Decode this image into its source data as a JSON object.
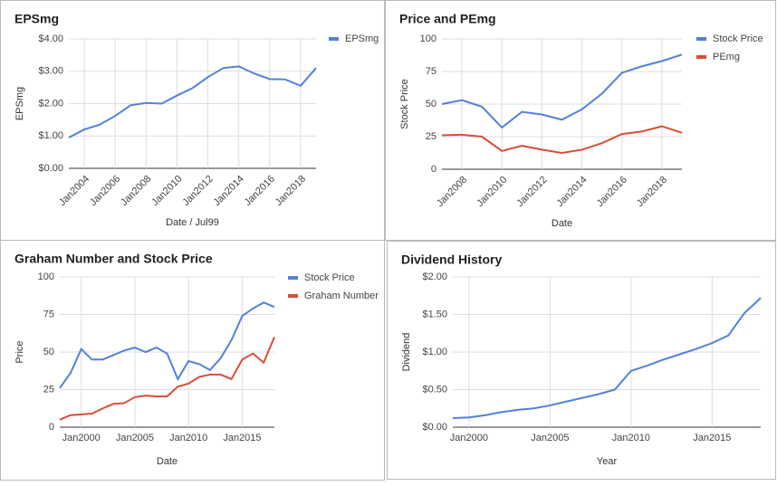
{
  "chart_data": [
    {
      "type": "line",
      "title": "EPSmg",
      "xlabel": "Date / Jul99",
      "ylabel": "EPSmg",
      "x": [
        2003,
        2004,
        2005,
        2006,
        2007,
        2008,
        2009,
        2010,
        2011,
        2012,
        2013,
        2014,
        2015,
        2016,
        2017,
        2018,
        2019
      ],
      "series": [
        {
          "name": "EPSmg",
          "color": "#5181da",
          "values": [
            0.95,
            1.2,
            1.35,
            1.62,
            1.95,
            2.02,
            2.0,
            2.25,
            2.48,
            2.82,
            3.1,
            3.15,
            2.93,
            2.76,
            2.75,
            2.55,
            3.1
          ]
        }
      ],
      "xlim": [
        2003,
        2019
      ],
      "xticks": [
        {
          "value": 2004,
          "label": "Jan2004"
        },
        {
          "value": 2006,
          "label": "Jan2006"
        },
        {
          "value": 2008,
          "label": "Jan2008"
        },
        {
          "value": 2010,
          "label": "Jan2010"
        },
        {
          "value": 2012,
          "label": "Jan2012"
        },
        {
          "value": 2014,
          "label": "Jan2014"
        },
        {
          "value": 2016,
          "label": "Jan2016"
        },
        {
          "value": 2018,
          "label": "Jan2018"
        }
      ],
      "ylim": [
        0,
        4
      ],
      "yticks": [
        {
          "value": 0,
          "label": "$0.00"
        },
        {
          "value": 1,
          "label": "$1.00"
        },
        {
          "value": 2,
          "label": "$2.00"
        },
        {
          "value": 3,
          "label": "$3.00"
        },
        {
          "value": 4,
          "label": "$4.00"
        }
      ],
      "grid": true,
      "legend": "right"
    },
    {
      "type": "line",
      "title": "Price and PEmg",
      "xlabel": "Date",
      "ylabel": "Stock Price",
      "x": [
        2007,
        2008,
        2009,
        2010,
        2011,
        2012,
        2013,
        2014,
        2015,
        2016,
        2017,
        2018,
        2019
      ],
      "series": [
        {
          "name": "Stock Price",
          "color": "#5181da",
          "values": [
            50,
            53,
            48,
            32,
            44,
            42,
            38,
            46,
            58,
            74,
            79,
            83,
            88
          ]
        },
        {
          "name": "PEmg",
          "color": "#dc4c36",
          "values": [
            26,
            26.5,
            25,
            14,
            18,
            15,
            12.5,
            15,
            20,
            27,
            29,
            33,
            28
          ]
        }
      ],
      "xlim": [
        2007,
        2019
      ],
      "xticks": [
        {
          "value": 2008,
          "label": "Jan2008"
        },
        {
          "value": 2010,
          "label": "Jan2010"
        },
        {
          "value": 2012,
          "label": "Jan2012"
        },
        {
          "value": 2014,
          "label": "Jan2014"
        },
        {
          "value": 2016,
          "label": "Jan2016"
        },
        {
          "value": 2018,
          "label": "Jan2018"
        }
      ],
      "ylim": [
        0,
        100
      ],
      "yticks": [
        0,
        25,
        50,
        75,
        100
      ],
      "grid": true,
      "legend": "right"
    },
    {
      "type": "line",
      "title": "Graham Number and Stock Price",
      "xlabel": "Date",
      "ylabel": "Price",
      "x": [
        1998,
        1999,
        2000,
        2001,
        2002,
        2003,
        2004,
        2005,
        2006,
        2007,
        2008,
        2009,
        2010,
        2011,
        2012,
        2013,
        2014,
        2015,
        2016,
        2017,
        2018
      ],
      "series": [
        {
          "name": "Stock Price",
          "color": "#5181da",
          "values": [
            26,
            36,
            52,
            45,
            45,
            48,
            51,
            53,
            50,
            53,
            49,
            32,
            44,
            42,
            38,
            46,
            58,
            74,
            79,
            83,
            80
          ]
        },
        {
          "name": "Graham Number",
          "color": "#dc4c36",
          "values": [
            5,
            8,
            8.5,
            9,
            12.5,
            15.5,
            16,
            20,
            21,
            20.5,
            20.5,
            27,
            29,
            33.5,
            35,
            35,
            32,
            45,
            49,
            43,
            60
          ]
        }
      ],
      "xlim": [
        1998,
        2018
      ],
      "xticks": [
        {
          "value": 2000,
          "label": "Jan2000"
        },
        {
          "value": 2005,
          "label": "Jan2005"
        },
        {
          "value": 2010,
          "label": "Jan2010"
        },
        {
          "value": 2015,
          "label": "Jan2015"
        }
      ],
      "ylim": [
        0,
        100
      ],
      "yticks": [
        0,
        25,
        50,
        75,
        100
      ],
      "grid": true,
      "legend": "right"
    },
    {
      "type": "line",
      "title": "Dividend History",
      "xlabel": "Year",
      "ylabel": "Dividend",
      "x": [
        1999,
        2000,
        2001,
        2002,
        2003,
        2004,
        2005,
        2006,
        2007,
        2008,
        2009,
        2010,
        2011,
        2012,
        2013,
        2014,
        2015,
        2016,
        2017,
        2018
      ],
      "values": [
        0.12,
        0.13,
        0.16,
        0.2,
        0.23,
        0.25,
        0.29,
        0.34,
        0.39,
        0.44,
        0.5,
        0.75,
        0.82,
        0.9,
        0.97,
        1.04,
        1.12,
        1.22,
        1.52,
        1.72
      ],
      "color": "#5181da",
      "xlim": [
        1999,
        2018
      ],
      "xticks": [
        {
          "value": 2000,
          "label": "Jan2000"
        },
        {
          "value": 2005,
          "label": "Jan2005"
        },
        {
          "value": 2010,
          "label": "Jan2010"
        },
        {
          "value": 2015,
          "label": "Jan2015"
        }
      ],
      "ylim": [
        0,
        2
      ],
      "yticks": [
        {
          "value": 0,
          "label": "$0.00"
        },
        {
          "value": 0.5,
          "label": "$0.50"
        },
        {
          "value": 1,
          "label": "$1.00"
        },
        {
          "value": 1.5,
          "label": "$1.50"
        },
        {
          "value": 2,
          "label": "$2.00"
        }
      ],
      "grid": true
    }
  ]
}
